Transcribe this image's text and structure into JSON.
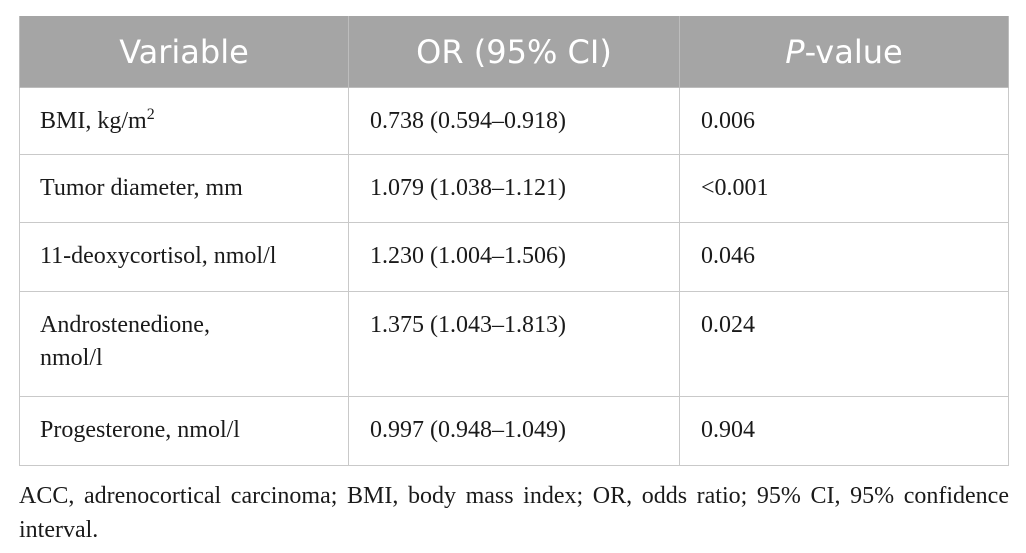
{
  "table": {
    "headers": {
      "variable": "Variable",
      "or_ci": "OR (95% CI)",
      "p_value_italic": "P",
      "p_value_rest": "-value"
    },
    "rows": [
      {
        "variable": "BMI, kg/m",
        "variable_sup": "2",
        "or_ci": "0.738 (0.594–0.918)",
        "p_value": "0.006"
      },
      {
        "variable": "Tumor diameter, mm",
        "or_ci": "1.079 (1.038–1.121)",
        "p_value": "<0.001"
      },
      {
        "variable": "11-deoxycortisol, nmol/l",
        "or_ci": "1.230 (1.004–1.506)",
        "p_value": "0.046"
      },
      {
        "variable": "Androstenedione, nmol/l",
        "or_ci": "1.375 (1.043–1.813)",
        "p_value": "0.024"
      },
      {
        "variable": "Progesterone, nmol/l",
        "or_ci": "0.997 (0.948–1.049)",
        "p_value": "0.904"
      }
    ]
  },
  "footnote": "ACC, adrenocortical carcinoma; BMI, body mass index; OR, odds ratio; 95% CI, 95% confidence interval.",
  "colors": {
    "header_background": "#a5a5a5",
    "header_text": "#ffffff",
    "border": "#c9c9c9",
    "body_text": "#1a1a1a"
  }
}
